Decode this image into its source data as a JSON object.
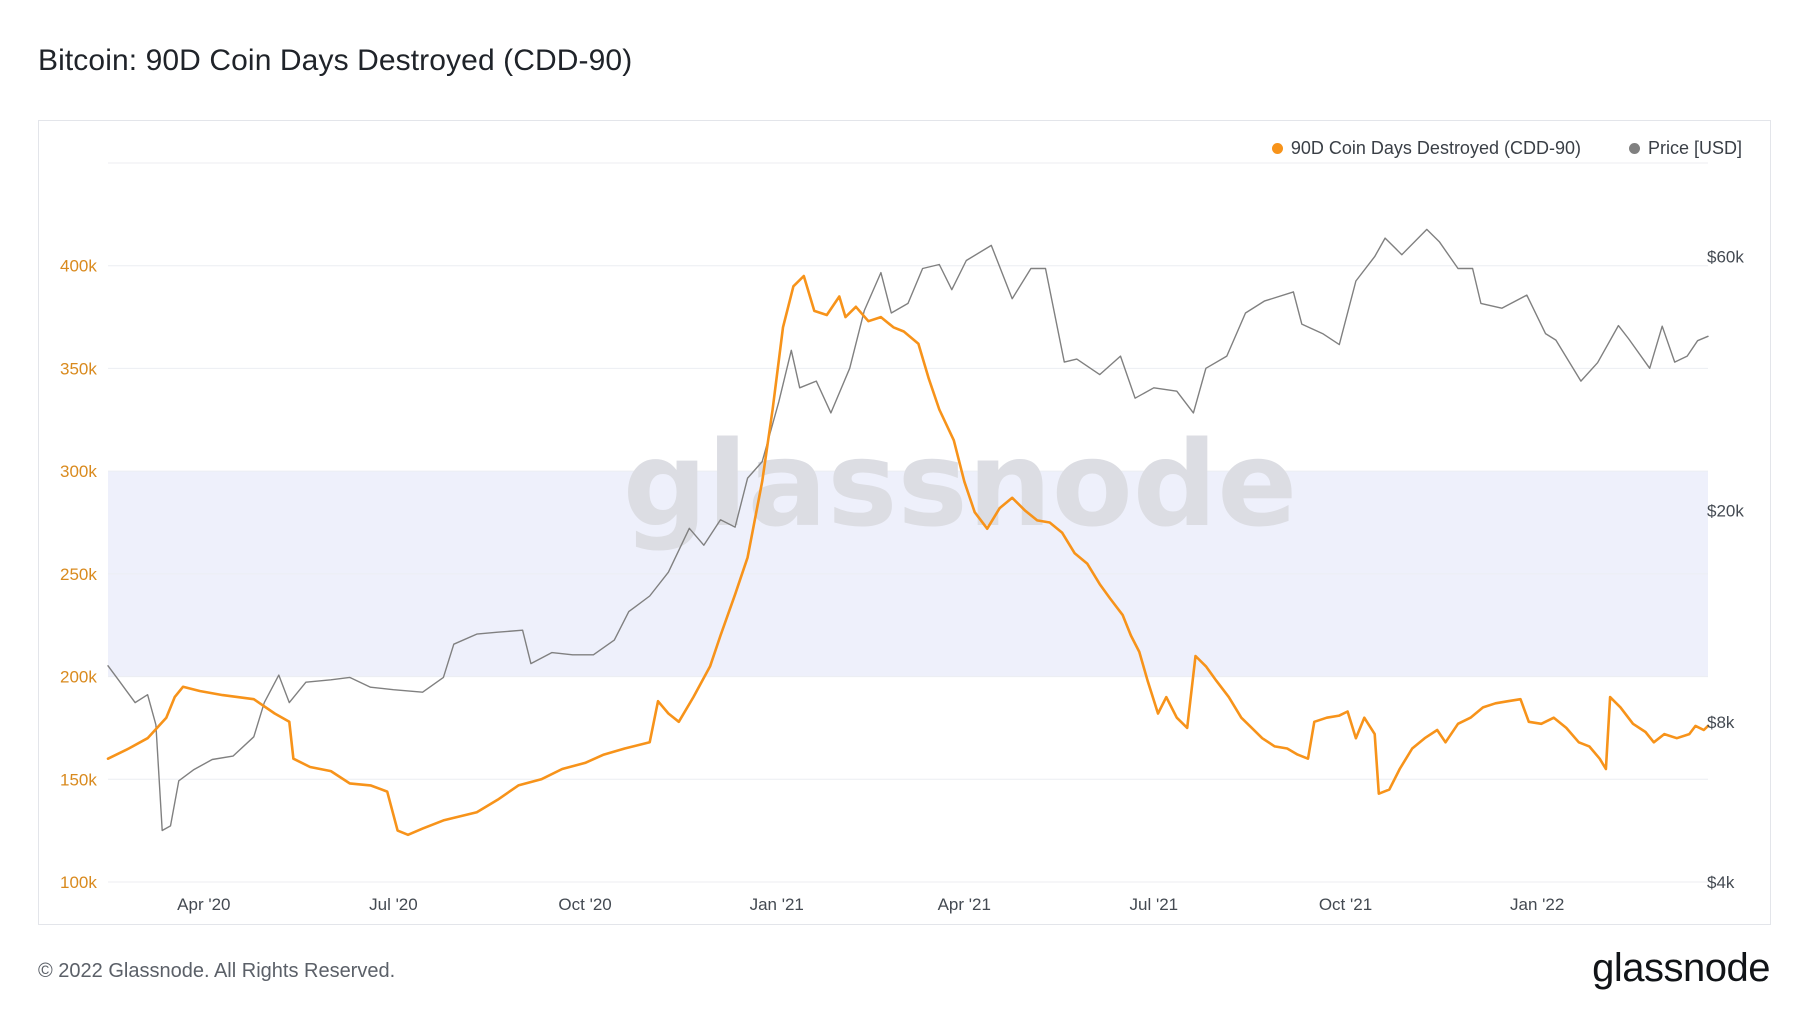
{
  "page": {
    "title": "Bitcoin: 90D Coin Days Destroyed (CDD-90)",
    "footer": "© 2022 Glassnode. All Rights Reserved.",
    "logo": "glassnode",
    "watermark": "glassnode"
  },
  "colors": {
    "cdd": "#f7931a",
    "cdd_axis": "#d98a1e",
    "price": "#808080",
    "band": "#eef0fb",
    "grid": "#eceef2",
    "axis_text": "#444a52",
    "watermark": "#dcdde3"
  },
  "chart_data": {
    "type": "line",
    "title": "Bitcoin: 90D Coin Days Destroyed (CDD-90)",
    "legend": [
      {
        "name": "90D Coin Days Destroyed (CDD-90)",
        "color": "#f7931a"
      },
      {
        "name": "Price [USD]",
        "color": "#808080"
      }
    ],
    "legend_position": "top-right",
    "grid": true,
    "x_range": [
      "2020-02-15",
      "2022-03-24"
    ],
    "x_ticks": [
      {
        "date": "2020-04-01",
        "label": "Apr '20"
      },
      {
        "date": "2020-07-01",
        "label": "Jul '20"
      },
      {
        "date": "2020-10-01",
        "label": "Oct '20"
      },
      {
        "date": "2021-01-01",
        "label": "Jan '21"
      },
      {
        "date": "2021-04-01",
        "label": "Apr '21"
      },
      {
        "date": "2021-07-01",
        "label": "Jul '21"
      },
      {
        "date": "2021-10-01",
        "label": "Oct '21"
      },
      {
        "date": "2022-01-01",
        "label": "Jan '22"
      }
    ],
    "y_left": {
      "scale": "linear",
      "range": [
        100000,
        450000
      ],
      "ticks": [
        {
          "value": 100000,
          "label": "100k"
        },
        {
          "value": 150000,
          "label": "150k"
        },
        {
          "value": 200000,
          "label": "200k"
        },
        {
          "value": 250000,
          "label": "250k"
        },
        {
          "value": 300000,
          "label": "300k"
        },
        {
          "value": 350000,
          "label": "350k"
        },
        {
          "value": 400000,
          "label": "400k"
        }
      ]
    },
    "y_right": {
      "scale": "log",
      "range": [
        4000,
        90000
      ],
      "ticks": [
        {
          "value": 4000,
          "label": "$4k"
        },
        {
          "value": 8000,
          "label": "$8k"
        },
        {
          "value": 20000,
          "label": "$20k"
        },
        {
          "value": 60000,
          "label": "$60k"
        }
      ]
    },
    "highlight_band": {
      "axis": "left",
      "from": 200000,
      "to": 300000
    },
    "series": [
      {
        "name": "90D Coin Days Destroyed (CDD-90)",
        "axis": "left",
        "points": [
          [
            "2020-02-15",
            160000
          ],
          [
            "2020-02-25",
            165000
          ],
          [
            "2020-03-05",
            170000
          ],
          [
            "2020-03-14",
            180000
          ],
          [
            "2020-03-18",
            190000
          ],
          [
            "2020-03-22",
            195000
          ],
          [
            "2020-03-30",
            193000
          ],
          [
            "2020-04-10",
            191000
          ],
          [
            "2020-04-25",
            189000
          ],
          [
            "2020-05-05",
            182000
          ],
          [
            "2020-05-12",
            178000
          ],
          [
            "2020-05-14",
            160000
          ],
          [
            "2020-05-22",
            156000
          ],
          [
            "2020-06-01",
            154000
          ],
          [
            "2020-06-10",
            148000
          ],
          [
            "2020-06-20",
            147000
          ],
          [
            "2020-06-28",
            144000
          ],
          [
            "2020-07-03",
            125000
          ],
          [
            "2020-07-08",
            123000
          ],
          [
            "2020-07-15",
            126000
          ],
          [
            "2020-07-25",
            130000
          ],
          [
            "2020-08-10",
            134000
          ],
          [
            "2020-08-20",
            140000
          ],
          [
            "2020-08-30",
            147000
          ],
          [
            "2020-09-10",
            150000
          ],
          [
            "2020-09-20",
            155000
          ],
          [
            "2020-10-01",
            158000
          ],
          [
            "2020-10-10",
            162000
          ],
          [
            "2020-10-20",
            165000
          ],
          [
            "2020-11-01",
            168000
          ],
          [
            "2020-11-05",
            188000
          ],
          [
            "2020-11-10",
            182000
          ],
          [
            "2020-11-15",
            178000
          ],
          [
            "2020-11-22",
            190000
          ],
          [
            "2020-11-30",
            205000
          ],
          [
            "2020-12-05",
            220000
          ],
          [
            "2020-12-12",
            240000
          ],
          [
            "2020-12-18",
            258000
          ],
          [
            "2020-12-25",
            295000
          ],
          [
            "2020-12-30",
            330000
          ],
          [
            "2021-01-04",
            370000
          ],
          [
            "2021-01-09",
            390000
          ],
          [
            "2021-01-14",
            395000
          ],
          [
            "2021-01-19",
            378000
          ],
          [
            "2021-01-25",
            376000
          ],
          [
            "2021-01-31",
            385000
          ],
          [
            "2021-02-03",
            375000
          ],
          [
            "2021-02-08",
            380000
          ],
          [
            "2021-02-14",
            373000
          ],
          [
            "2021-02-20",
            375000
          ],
          [
            "2021-02-26",
            370000
          ],
          [
            "2021-03-03",
            368000
          ],
          [
            "2021-03-10",
            362000
          ],
          [
            "2021-03-15",
            345000
          ],
          [
            "2021-03-20",
            330000
          ],
          [
            "2021-03-27",
            315000
          ],
          [
            "2021-04-01",
            295000
          ],
          [
            "2021-04-06",
            280000
          ],
          [
            "2021-04-12",
            272000
          ],
          [
            "2021-04-18",
            282000
          ],
          [
            "2021-04-24",
            287000
          ],
          [
            "2021-04-30",
            281000
          ],
          [
            "2021-05-06",
            276000
          ],
          [
            "2021-05-12",
            275000
          ],
          [
            "2021-05-18",
            270000
          ],
          [
            "2021-05-24",
            260000
          ],
          [
            "2021-05-30",
            255000
          ],
          [
            "2021-06-05",
            245000
          ],
          [
            "2021-06-10",
            238000
          ],
          [
            "2021-06-16",
            230000
          ],
          [
            "2021-06-20",
            220000
          ],
          [
            "2021-06-24",
            212000
          ],
          [
            "2021-06-28",
            198000
          ],
          [
            "2021-07-03",
            182000
          ],
          [
            "2021-07-07",
            190000
          ],
          [
            "2021-07-12",
            180000
          ],
          [
            "2021-07-17",
            175000
          ],
          [
            "2021-07-21",
            210000
          ],
          [
            "2021-07-26",
            205000
          ],
          [
            "2021-07-31",
            198000
          ],
          [
            "2021-08-06",
            190000
          ],
          [
            "2021-08-12",
            180000
          ],
          [
            "2021-08-17",
            175000
          ],
          [
            "2021-08-22",
            170000
          ],
          [
            "2021-08-28",
            166000
          ],
          [
            "2021-09-03",
            165000
          ],
          [
            "2021-09-08",
            162000
          ],
          [
            "2021-09-13",
            160000
          ],
          [
            "2021-09-16",
            178000
          ],
          [
            "2021-09-22",
            180000
          ],
          [
            "2021-09-28",
            181000
          ],
          [
            "2021-10-02",
            183000
          ],
          [
            "2021-10-06",
            170000
          ],
          [
            "2021-10-10",
            180000
          ],
          [
            "2021-10-15",
            172000
          ],
          [
            "2021-10-17",
            143000
          ],
          [
            "2021-10-22",
            145000
          ],
          [
            "2021-10-27",
            155000
          ],
          [
            "2021-11-02",
            165000
          ],
          [
            "2021-11-08",
            170000
          ],
          [
            "2021-11-14",
            174000
          ],
          [
            "2021-11-18",
            168000
          ],
          [
            "2021-11-24",
            177000
          ],
          [
            "2021-11-30",
            180000
          ],
          [
            "2021-12-06",
            185000
          ],
          [
            "2021-12-12",
            187000
          ],
          [
            "2021-12-18",
            188000
          ],
          [
            "2021-12-24",
            189000
          ],
          [
            "2021-12-28",
            178000
          ],
          [
            "2022-01-03",
            177000
          ],
          [
            "2022-01-09",
            180000
          ],
          [
            "2022-01-15",
            175000
          ],
          [
            "2022-01-21",
            168000
          ],
          [
            "2022-01-26",
            166000
          ],
          [
            "2022-01-31",
            160000
          ],
          [
            "2022-02-03",
            155000
          ],
          [
            "2022-02-05",
            190000
          ],
          [
            "2022-02-10",
            185000
          ],
          [
            "2022-02-16",
            177000
          ],
          [
            "2022-02-22",
            173000
          ],
          [
            "2022-02-26",
            168000
          ],
          [
            "2022-03-03",
            172000
          ],
          [
            "2022-03-09",
            170000
          ],
          [
            "2022-03-15",
            172000
          ],
          [
            "2022-03-18",
            176000
          ],
          [
            "2022-03-22",
            174000
          ],
          [
            "2022-03-24",
            176000
          ]
        ]
      },
      {
        "name": "Price [USD]",
        "axis": "right",
        "points": [
          [
            "2020-02-15",
            10200
          ],
          [
            "2020-02-20",
            9600
          ],
          [
            "2020-02-28",
            8700
          ],
          [
            "2020-03-05",
            9000
          ],
          [
            "2020-03-09",
            7900
          ],
          [
            "2020-03-12",
            5000
          ],
          [
            "2020-03-16",
            5100
          ],
          [
            "2020-03-20",
            6200
          ],
          [
            "2020-03-27",
            6500
          ],
          [
            "2020-04-05",
            6800
          ],
          [
            "2020-04-15",
            6900
          ],
          [
            "2020-04-25",
            7500
          ],
          [
            "2020-04-30",
            8700
          ],
          [
            "2020-05-07",
            9800
          ],
          [
            "2020-05-12",
            8700
          ],
          [
            "2020-05-20",
            9500
          ],
          [
            "2020-06-01",
            9600
          ],
          [
            "2020-06-10",
            9700
          ],
          [
            "2020-06-20",
            9300
          ],
          [
            "2020-07-01",
            9200
          ],
          [
            "2020-07-15",
            9100
          ],
          [
            "2020-07-25",
            9700
          ],
          [
            "2020-07-30",
            11200
          ],
          [
            "2020-08-10",
            11700
          ],
          [
            "2020-08-20",
            11800
          ],
          [
            "2020-09-01",
            11900
          ],
          [
            "2020-09-05",
            10300
          ],
          [
            "2020-09-15",
            10800
          ],
          [
            "2020-09-25",
            10700
          ],
          [
            "2020-10-05",
            10700
          ],
          [
            "2020-10-15",
            11400
          ],
          [
            "2020-10-22",
            12900
          ],
          [
            "2020-11-01",
            13800
          ],
          [
            "2020-11-10",
            15300
          ],
          [
            "2020-11-20",
            18500
          ],
          [
            "2020-11-27",
            17200
          ],
          [
            "2020-12-05",
            19200
          ],
          [
            "2020-12-12",
            18600
          ],
          [
            "2020-12-18",
            23000
          ],
          [
            "2020-12-25",
            24700
          ],
          [
            "2021-01-02",
            32000
          ],
          [
            "2021-01-08",
            40000
          ],
          [
            "2021-01-12",
            34000
          ],
          [
            "2021-01-20",
            35000
          ],
          [
            "2021-01-27",
            30500
          ],
          [
            "2021-02-05",
            37000
          ],
          [
            "2021-02-12",
            47500
          ],
          [
            "2021-02-20",
            56000
          ],
          [
            "2021-02-25",
            47000
          ],
          [
            "2021-03-05",
            49000
          ],
          [
            "2021-03-12",
            57000
          ],
          [
            "2021-03-20",
            58000
          ],
          [
            "2021-03-26",
            52000
          ],
          [
            "2021-04-02",
            59000
          ],
          [
            "2021-04-14",
            63000
          ],
          [
            "2021-04-24",
            50000
          ],
          [
            "2021-05-03",
            57000
          ],
          [
            "2021-05-10",
            57000
          ],
          [
            "2021-05-19",
            38000
          ],
          [
            "2021-05-25",
            38500
          ],
          [
            "2021-06-05",
            36000
          ],
          [
            "2021-06-15",
            39000
          ],
          [
            "2021-06-22",
            32500
          ],
          [
            "2021-07-01",
            34000
          ],
          [
            "2021-07-12",
            33500
          ],
          [
            "2021-07-20",
            30500
          ],
          [
            "2021-07-26",
            37000
          ],
          [
            "2021-08-05",
            39000
          ],
          [
            "2021-08-14",
            47000
          ],
          [
            "2021-08-23",
            49500
          ],
          [
            "2021-09-06",
            51500
          ],
          [
            "2021-09-10",
            44800
          ],
          [
            "2021-09-20",
            43000
          ],
          [
            "2021-09-28",
            41000
          ],
          [
            "2021-10-06",
            54000
          ],
          [
            "2021-10-15",
            60000
          ],
          [
            "2021-10-20",
            65000
          ],
          [
            "2021-10-28",
            60500
          ],
          [
            "2021-11-09",
            67500
          ],
          [
            "2021-11-15",
            64000
          ],
          [
            "2021-11-24",
            57000
          ],
          [
            "2021-12-01",
            57000
          ],
          [
            "2021-12-05",
            49000
          ],
          [
            "2021-12-15",
            48000
          ],
          [
            "2021-12-27",
            50800
          ],
          [
            "2022-01-05",
            43000
          ],
          [
            "2022-01-10",
            41800
          ],
          [
            "2022-01-22",
            35000
          ],
          [
            "2022-01-30",
            37900
          ],
          [
            "2022-02-09",
            44500
          ],
          [
            "2022-02-14",
            42000
          ],
          [
            "2022-02-24",
            37000
          ],
          [
            "2022-03-02",
            44400
          ],
          [
            "2022-03-08",
            38000
          ],
          [
            "2022-03-14",
            39000
          ],
          [
            "2022-03-19",
            41700
          ],
          [
            "2022-03-24",
            42500
          ]
        ]
      }
    ]
  }
}
